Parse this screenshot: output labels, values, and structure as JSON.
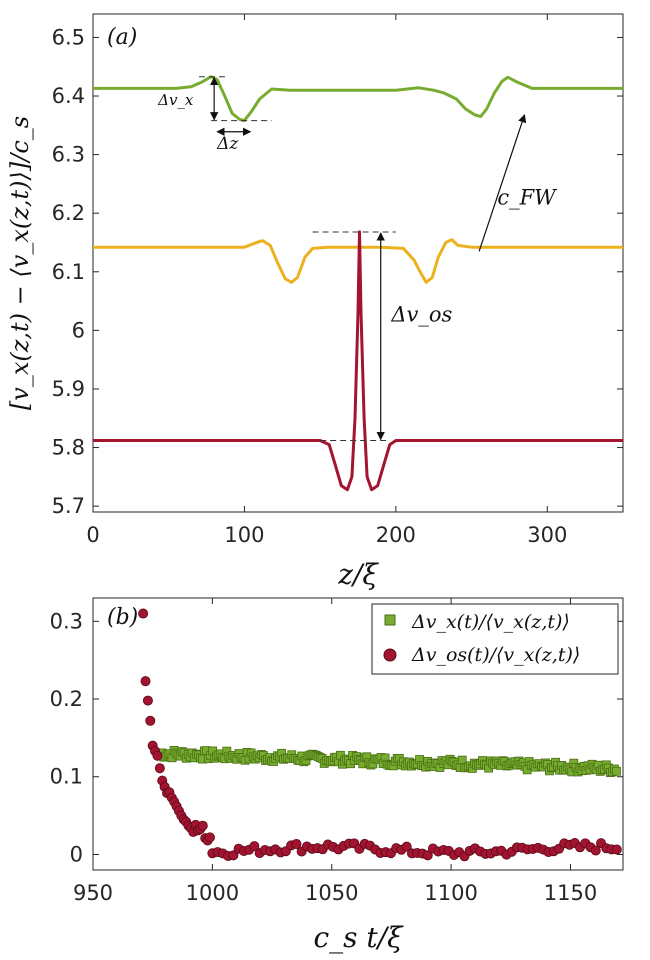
{
  "colors": {
    "green": "#77AC30",
    "yellow": "#EDB120",
    "red": "#A2142F",
    "green_marker_edge": "#4a6e12",
    "red_marker_edge": "#5a0a1a"
  },
  "panel_a": {
    "label": "(a)",
    "ylabel_text": "[v_x(z,t) − ⟨v_x(z,t)⟩]/c_s",
    "xlabel_text": "z/ξ",
    "annotations": {
      "dvx": "Δv_x",
      "dz": "Δz",
      "cfw": "c_FW",
      "dvos": "Δv_os"
    }
  },
  "panel_b": {
    "label": "(b)",
    "xlabel_text": "c_s t/ξ",
    "legend": [
      "Δv_x(t)/⟨v_x(z,t)⟩",
      "Δv_os(t)/⟨v_x(z,t)⟩"
    ]
  },
  "chart_data": [
    {
      "type": "line",
      "title": "(a)",
      "xlabel": "z/ξ",
      "ylabel": "[v_x(z,t) − ⟨v_x(z,t)⟩]/c_s",
      "xlim": [
        0,
        350
      ],
      "ylim": [
        5.69,
        6.54
      ],
      "xticks": [
        0,
        100,
        200,
        300
      ],
      "yticks": [
        5.7,
        5.8,
        5.9,
        6,
        6.1,
        6.2,
        6.3,
        6.4,
        6.5
      ],
      "ytick_labels": [
        "5.7",
        "5.8",
        "5.9",
        "6",
        "6.1",
        "6.2",
        "6.3",
        "6.4",
        "6.5"
      ],
      "series": [
        {
          "name": "green",
          "x": [
            0,
            40,
            55,
            65,
            72,
            78,
            82,
            87,
            92,
            97,
            100,
            105,
            110,
            118,
            130,
            150,
            175,
            200,
            215,
            225,
            232,
            240,
            246,
            252,
            256,
            260,
            265,
            270,
            274,
            280,
            290,
            310,
            330,
            350
          ],
          "y": [
            6.413,
            6.413,
            6.413,
            6.416,
            6.424,
            6.433,
            6.428,
            6.4,
            6.37,
            6.36,
            6.358,
            6.375,
            6.395,
            6.412,
            6.41,
            6.41,
            6.41,
            6.41,
            6.414,
            6.41,
            6.405,
            6.395,
            6.378,
            6.368,
            6.365,
            6.378,
            6.405,
            6.425,
            6.432,
            6.424,
            6.413,
            6.413,
            6.413,
            6.413
          ]
        },
        {
          "name": "yellow",
          "x": [
            0,
            80,
            100,
            108,
            112,
            117,
            122,
            127,
            131,
            135,
            140,
            145,
            155,
            170,
            190,
            205,
            212,
            216,
            220,
            224,
            228,
            233,
            237,
            241,
            250,
            270,
            300,
            350
          ],
          "y": [
            6.142,
            6.142,
            6.142,
            6.15,
            6.153,
            6.145,
            6.115,
            6.088,
            6.082,
            6.09,
            6.125,
            6.14,
            6.142,
            6.142,
            6.142,
            6.14,
            6.12,
            6.1,
            6.082,
            6.09,
            6.125,
            6.15,
            6.155,
            6.145,
            6.142,
            6.142,
            6.142,
            6.142
          ],
          "dashed_peak_ref": 6.168
        },
        {
          "name": "red",
          "x": [
            0,
            140,
            150,
            156,
            160,
            164,
            168,
            171,
            173,
            175,
            176,
            177,
            179,
            181,
            184,
            188,
            192,
            196,
            200,
            205,
            220,
            350
          ],
          "y": [
            5.812,
            5.812,
            5.812,
            5.805,
            5.77,
            5.735,
            5.728,
            5.75,
            5.85,
            6.03,
            6.168,
            6.03,
            5.85,
            5.75,
            5.728,
            5.735,
            5.77,
            5.805,
            5.812,
            5.812,
            5.812,
            5.812
          ]
        }
      ]
    },
    {
      "type": "scatter",
      "title": "(b)",
      "xlabel": "c_s t/ξ",
      "ylabel": "",
      "xlim": [
        950,
        1172
      ],
      "ylim": [
        -0.02,
        0.33
      ],
      "xticks": [
        950,
        1000,
        1050,
        1100,
        1150
      ],
      "yticks": [
        0,
        0.1,
        0.2,
        0.3
      ],
      "ytick_labels": [
        "0",
        "0.1",
        "0.2",
        "0.3"
      ],
      "legend_position": "top-right",
      "series": [
        {
          "name": "Δv_x(t)/⟨v_x(z,t)⟩",
          "marker": "square",
          "x_start": 978,
          "x_end": 1170,
          "step": 0.85,
          "y_start": 0.13,
          "y_end": 0.11,
          "jitter": 0.006
        },
        {
          "name": "Δv_os(t)/⟨v_x(z,t)⟩",
          "marker": "circle",
          "initial": [
            [
              971,
              0.31
            ],
            [
              972,
              0.223
            ],
            [
              973,
              0.198
            ],
            [
              974,
              0.172
            ],
            [
              975,
              0.14
            ],
            [
              976,
              0.133
            ],
            [
              977,
              0.127
            ],
            [
              978,
              0.111
            ],
            [
              979,
              0.095
            ],
            [
              980,
              0.087
            ],
            [
              981,
              0.079
            ],
            [
              982,
              0.08
            ],
            [
              983,
              0.073
            ],
            [
              984,
              0.068
            ],
            [
              985,
              0.062
            ],
            [
              986,
              0.056
            ],
            [
              987,
              0.05
            ],
            [
              988,
              0.045
            ],
            [
              989,
              0.042
            ],
            [
              990,
              0.037
            ],
            [
              991,
              0.034
            ],
            [
              992,
              0.029
            ],
            [
              993,
              0.038
            ],
            [
              994,
              0.031
            ],
            [
              995,
              0.033
            ],
            [
              996,
              0.037
            ],
            [
              997,
              0.021
            ],
            [
              998,
              0.018
            ],
            [
              999,
              0.022
            ]
          ],
          "tail": {
            "x_start": 1000,
            "x_end": 1170,
            "step": 2.2,
            "base": 0.006,
            "jitter": 0.006
          }
        }
      ]
    }
  ]
}
